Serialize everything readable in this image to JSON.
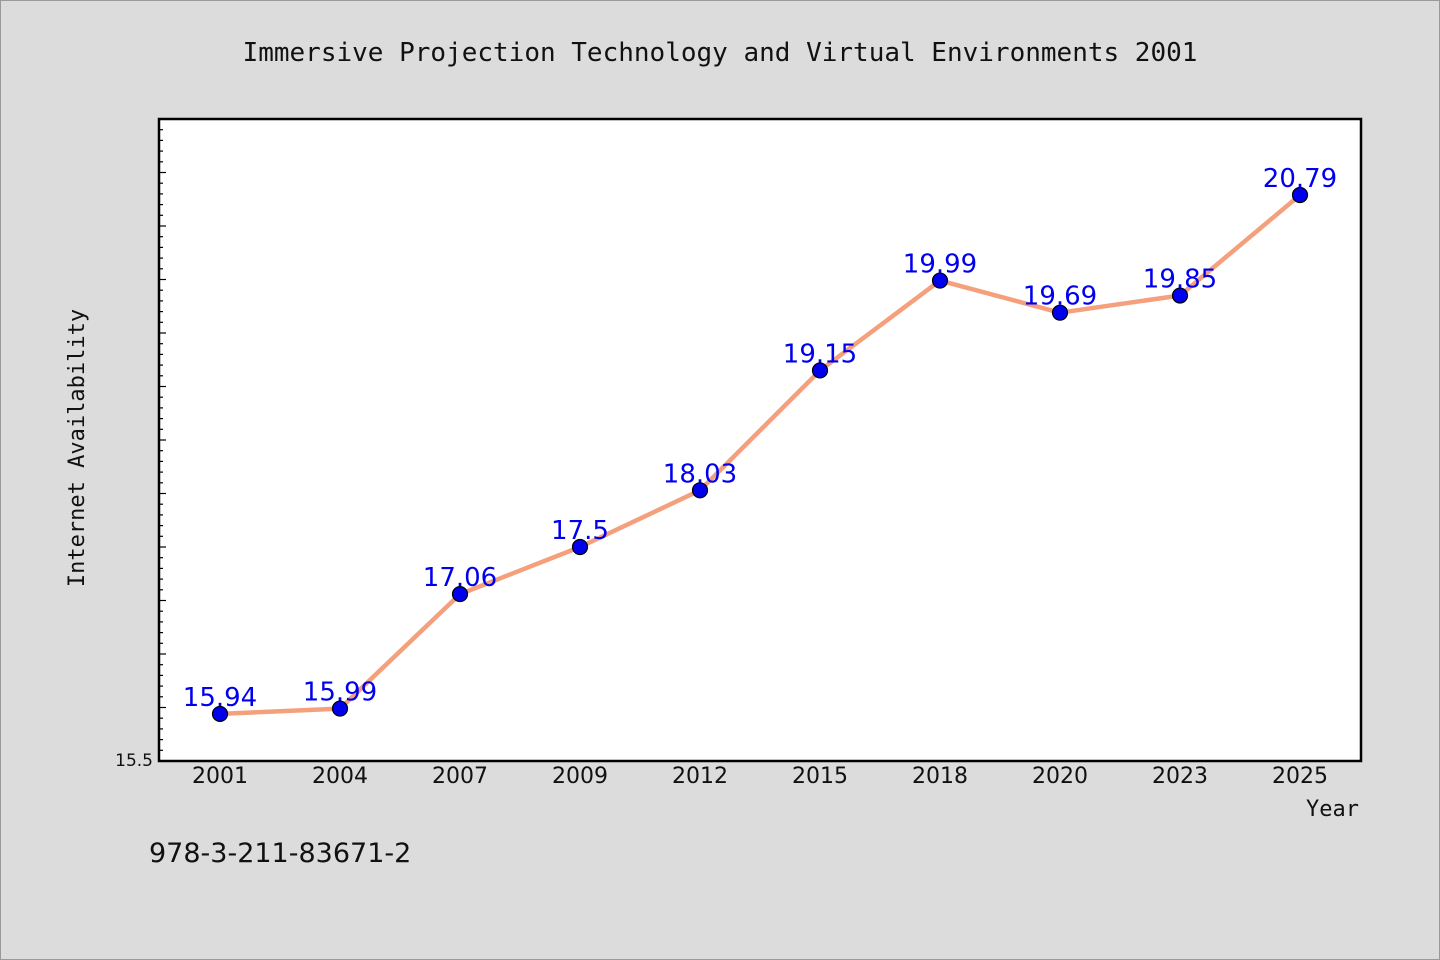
{
  "chart_data": {
    "type": "line",
    "title": "Immersive Projection Technology and Virtual Environments 2001",
    "xlabel": "Year",
    "ylabel": "Internet Availability",
    "categories": [
      "2001",
      "2004",
      "2007",
      "2009",
      "2012",
      "2015",
      "2018",
      "2020",
      "2023",
      "2025"
    ],
    "series": [
      {
        "values": [
          15.94,
          15.99,
          17.06,
          17.5,
          18.03,
          19.15,
          19.99,
          19.69,
          19.85,
          20.79
        ]
      }
    ],
    "data_labels": [
      "15.94",
      "15.99",
      "17.06",
      "17.5",
      "18.03",
      "19.15",
      "19.99",
      "19.69",
      "19.85",
      "20.79"
    ],
    "ylim": [
      15.5,
      21.5
    ],
    "y_tick_label": "15.5",
    "grid": false,
    "legend": "none",
    "colors": {
      "line": "#f4a07c",
      "marker": "#0000ee",
      "data_label": "#0000ee",
      "plot_bg": "#ffffff",
      "page_bg": "#dcdcdc"
    }
  },
  "footer": {
    "text": "978-3-211-83671-2"
  }
}
